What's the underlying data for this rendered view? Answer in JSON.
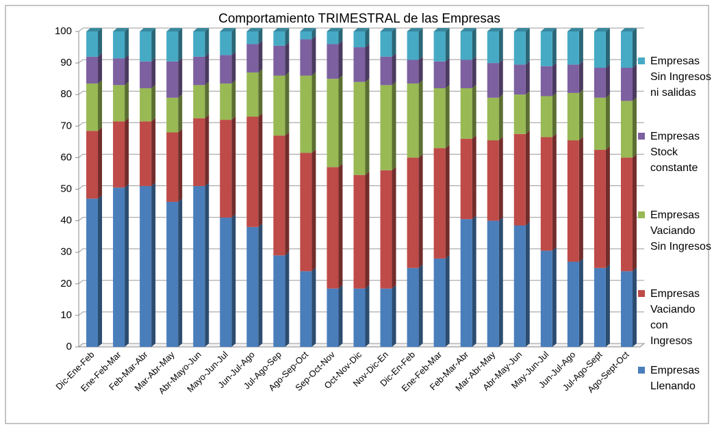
{
  "chart_data": {
    "type": "stacked_bar_3d",
    "title": "Comportamiento TRIMESTRAL de las Empresas",
    "categories": [
      "Dic-Ene-Feb",
      "Ene-Feb-Mar",
      "Feb-Mar-Abr",
      "Mar-Abr-May",
      "Abr-Mayo-Jun",
      "Mayo-Jun-Jul",
      "Jun-Jul-Ago",
      "Jul-Ago-Sep",
      "Ago-Sep-Oct",
      "Sep-Oct-Nov",
      "Oct-Nov-Dic",
      "Nov-Dic-En",
      "Dic-En-Feb",
      "Ene-Feb-Mar",
      "Feb-Mar-Abr",
      "Mar-Abr-May",
      "Abr-May-Jun",
      "May-Jun-Jul",
      "Jun-Jul-Ago",
      "Jul-Ago-Sept",
      "Ago-Sept-Oct"
    ],
    "series": [
      {
        "name": "Empresas Llenando",
        "color": "#4a7ebb",
        "values": [
          47,
          50.5,
          51,
          46,
          51,
          41,
          38,
          29,
          24,
          18.5,
          18.5,
          18.5,
          25,
          28,
          40.5,
          40,
          38.5,
          30.5,
          27,
          25,
          24
        ]
      },
      {
        "name": "Empresas Vaciando con Ingresos",
        "color": "#be4b48",
        "values": [
          21.5,
          21,
          20.5,
          22,
          21.5,
          31,
          35,
          38,
          37.5,
          38.5,
          36,
          37.5,
          35,
          35,
          25.5,
          25.5,
          29,
          36,
          38.5,
          37.5,
          36
        ]
      },
      {
        "name": "Empresas Vaciando Sin Ingresos",
        "color": "#98b954",
        "values": [
          15,
          11.5,
          10.5,
          11,
          10.5,
          11.5,
          14,
          19,
          24.5,
          28,
          29.5,
          27,
          23.5,
          19,
          16,
          13.5,
          12.5,
          13,
          15,
          16.5,
          18
        ]
      },
      {
        "name": "Empresas Stock constante",
        "color": "#7d60a0",
        "values": [
          8.5,
          8.5,
          8.5,
          11.5,
          9,
          9,
          9,
          9.5,
          11.5,
          11,
          11,
          9,
          7.5,
          8.5,
          9,
          11,
          9.5,
          9.5,
          9,
          9.5,
          10.5
        ]
      },
      {
        "name": "Empresas Sin Ingresos ni salidas",
        "color": "#46aac5",
        "values": [
          8,
          8.5,
          9.5,
          9.5,
          8,
          7.5,
          4,
          4.5,
          2.5,
          4,
          5,
          8,
          9,
          9.5,
          9,
          10,
          10.5,
          11,
          10.5,
          11.5,
          11.5
        ]
      }
    ],
    "ylim": [
      0,
      100
    ],
    "yticks": [
      0,
      10,
      20,
      30,
      40,
      50,
      60,
      70,
      80,
      90,
      100
    ],
    "grid": true,
    "legend": "right"
  }
}
